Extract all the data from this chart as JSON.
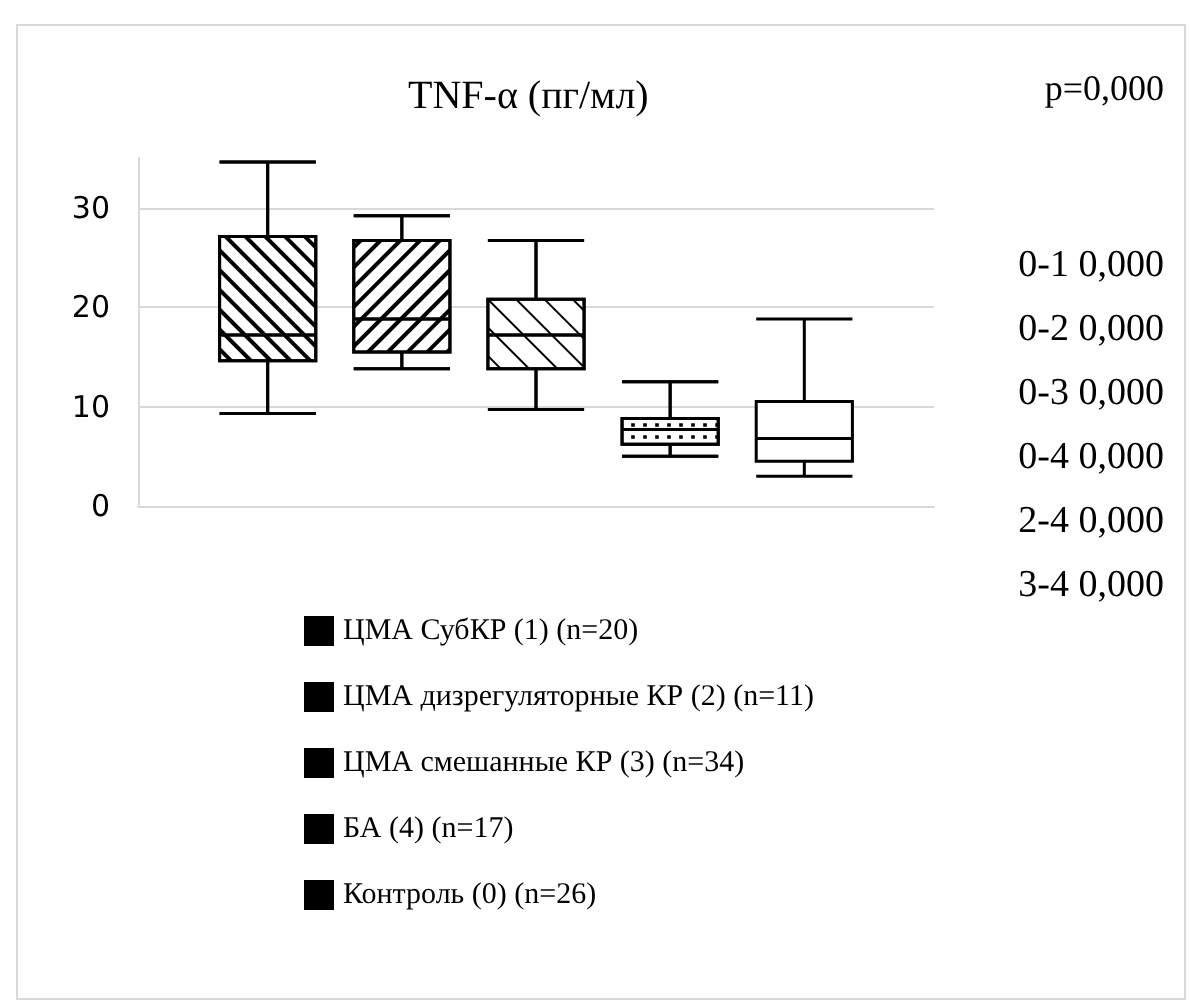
{
  "chart_data": {
    "type": "box",
    "title": "TNF-α (пг/мл)",
    "categories": [
      null
    ],
    "series": [
      {
        "name": "ЦМА СубКР (1) (n=20)",
        "color": "#000000",
        "boxes": [
          {
            "low": 9.3,
            "q1": 14.6,
            "median": 17.2,
            "q3": 27.1,
            "high": 34.6
          }
        ]
      },
      {
        "name": "ЦМА дизрегуляторные КР (2) (n=11)",
        "color": "#000000",
        "boxes": [
          {
            "low": 13.8,
            "q1": 15.5,
            "median": 18.8,
            "q3": 26.7,
            "high": 29.2
          }
        ]
      },
      {
        "name": "ЦМА смешанные КР (3) (n=34)",
        "color": "#000000",
        "boxes": [
          {
            "low": 9.7,
            "q1": 13.8,
            "median": 17.2,
            "q3": 20.8,
            "high": 26.7
          }
        ]
      },
      {
        "name": "БА (4) (n=17)",
        "color": "#000000",
        "boxes": [
          {
            "low": 5.0,
            "q1": 6.2,
            "median": 7.7,
            "q3": 8.8,
            "high": 12.5
          }
        ]
      },
      {
        "name": "Контроль (0) (n=26)",
        "color": "#000000",
        "boxes": [
          {
            "low": 3.0,
            "q1": 4.5,
            "median": 6.8,
            "q3": 10.5,
            "high": 18.8
          }
        ]
      }
    ],
    "ylim": [
      0,
      35
    ],
    "yticks": [
      0,
      10,
      20,
      30
    ],
    "grid": "y",
    "legend": "bottom",
    "annotations": [
      "p=0,000",
      "0-1 0,000",
      "0-2 0,000",
      "0-3 0,000",
      "0-4 0,000",
      "2-4 0,000",
      "3-4 0,000"
    ]
  }
}
